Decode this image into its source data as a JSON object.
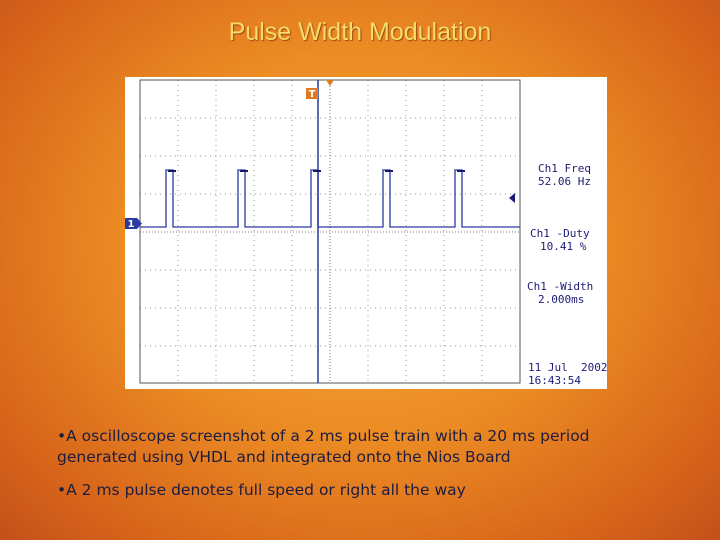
{
  "title": "Pulse Width Modulation",
  "scope": {
    "trigger_label": "T",
    "channel_label": "1",
    "freq_label": "Ch1 Freq",
    "freq_value": "52.06 Hz",
    "duty_label": "Ch1 -Duty",
    "duty_value": "10.41 %",
    "width_label": "Ch1 -Width",
    "width_value": "2.000ms",
    "date": "11 Jul  2002",
    "time": "16:43:54"
  },
  "bullets": [
    "•A oscilloscope screenshot of a 2 ms pulse train with a 20 ms period generated using VHDL and integrated onto the Nios Board",
    "•A 2 ms pulse denotes full speed or right all the way"
  ]
}
